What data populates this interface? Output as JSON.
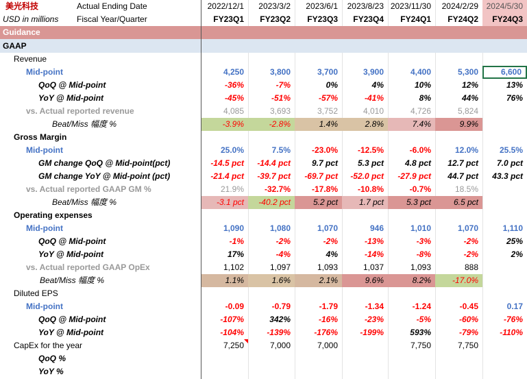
{
  "header": {
    "brand": "美光科技",
    "ending_label": "Actual Ending Date",
    "units": "USD in millions",
    "fq_label": "Fiscal Year/Quarter",
    "dates": [
      "2022/12/1",
      "2023/3/2",
      "2023/6/1",
      "2023/8/23",
      "2023/11/30",
      "2024/2/29",
      "2024/5/30"
    ],
    "quarters": [
      "FY23Q1",
      "FY23Q2",
      "FY23Q3",
      "FY23Q4",
      "FY24Q1",
      "FY24Q2",
      "FY24Q3"
    ]
  },
  "sections": {
    "guidance": "Guidance",
    "gaap": "GAAP"
  },
  "rows": {
    "revenue": {
      "label": "Revenue"
    },
    "rev_mid": {
      "label": "Mid-point",
      "values": [
        "4,250",
        "3,800",
        "3,700",
        "3,900",
        "4,400",
        "5,300",
        "6,600"
      ]
    },
    "rev_qoq": {
      "label": "QoQ @ Mid-point",
      "values": [
        "-36%",
        "-7%",
        "0%",
        "4%",
        "10%",
        "12%",
        "13%"
      ]
    },
    "rev_yoy": {
      "label": "YoY @ Mid-point",
      "values": [
        "-45%",
        "-51%",
        "-57%",
        "-41%",
        "8%",
        "44%",
        "76%"
      ]
    },
    "rev_act": {
      "label": "vs. Actual reported revenue",
      "values": [
        "4,085",
        "3,693",
        "3,752",
        "4,010",
        "4,726",
        "5,824",
        ""
      ]
    },
    "rev_beat": {
      "label": "Beat/Miss 幅度 %",
      "values": [
        "-3.9%",
        "-2.8%",
        "1.4%",
        "2.8%",
        "7.4%",
        "9.9%",
        ""
      ]
    },
    "gm": {
      "label": "Gross Margin"
    },
    "gm_mid": {
      "label": "Mid-point",
      "values": [
        "25.0%",
        "7.5%",
        "-23.0%",
        "-12.5%",
        "-6.0%",
        "12.0%",
        "25.5%"
      ]
    },
    "gm_qoq": {
      "label": "GM change QoQ  @ Mid-point(pct)",
      "values": [
        "-14.5 pct",
        "-14.4 pct",
        "9.7 pct",
        "5.3 pct",
        "4.8 pct",
        "12.7 pct",
        "7.0 pct"
      ]
    },
    "gm_yoy": {
      "label": "GM change YoY @ Mid-point (pct)",
      "values": [
        "-21.4 pct",
        "-39.7 pct",
        "-69.7 pct",
        "-52.0 pct",
        "-27.9 pct",
        "44.7 pct",
        "43.3 pct"
      ]
    },
    "gm_act": {
      "label": "vs. Actual reported GAAP GM %",
      "values": [
        "21.9%",
        "-32.7%",
        "-17.8%",
        "-10.8%",
        "-0.7%",
        "18.5%",
        ""
      ]
    },
    "gm_beat": {
      "label": "Beat/Miss 幅度 %",
      "values": [
        "-3.1 pct",
        "-40.2 pct",
        "5.2 pct",
        "1.7 pct",
        "5.3 pct",
        "6.5 pct",
        ""
      ]
    },
    "opex": {
      "label": "Operating expenses"
    },
    "opex_mid": {
      "label": "Mid-point",
      "values": [
        "1,090",
        "1,080",
        "1,070",
        "946",
        "1,010",
        "1,070",
        "1,110"
      ]
    },
    "opex_qoq": {
      "label": "QoQ @ Mid-point",
      "values": [
        "-1%",
        "-2%",
        "-2%",
        "-13%",
        "-3%",
        "-2%",
        "25%"
      ]
    },
    "opex_yoy": {
      "label": "YoY @ Mid-point",
      "values": [
        "17%",
        "-4%",
        "4%",
        "-14%",
        "-8%",
        "-2%",
        "2%"
      ]
    },
    "opex_act": {
      "label": "vs. Actual reported GAAP OpEx",
      "values": [
        "1,102",
        "1,097",
        "1,093",
        "1,037",
        "1,093",
        "888",
        ""
      ]
    },
    "opex_beat": {
      "label": "Beat/Miss 幅度 %",
      "values": [
        "1.1%",
        "1.6%",
        "2.1%",
        "9.6%",
        "8.2%",
        "-17.0%",
        ""
      ]
    },
    "eps": {
      "label": "Diluted EPS"
    },
    "eps_mid": {
      "label": "Mid-point",
      "values": [
        "-0.09",
        "-0.79",
        "-1.79",
        "-1.34",
        "-1.24",
        "-0.45",
        "0.17"
      ]
    },
    "eps_qoq": {
      "label": "QoQ @ Mid-point",
      "values": [
        "-107%",
        "342%",
        "-16%",
        "-23%",
        "-5%",
        "-60%",
        "-76%"
      ]
    },
    "eps_yoy": {
      "label": "YoY @ Mid-point",
      "values": [
        "-104%",
        "-139%",
        "-176%",
        "-199%",
        "593%",
        "-79%",
        "-110%"
      ]
    },
    "capex": {
      "label": "CapEx for the year",
      "values": [
        "7,250",
        "7,000",
        "7,000",
        "",
        "7,750",
        "7,750",
        ""
      ]
    },
    "capex_qoq": {
      "label": "QoQ %"
    },
    "capex_yoy": {
      "label": "YoY %"
    }
  }
}
